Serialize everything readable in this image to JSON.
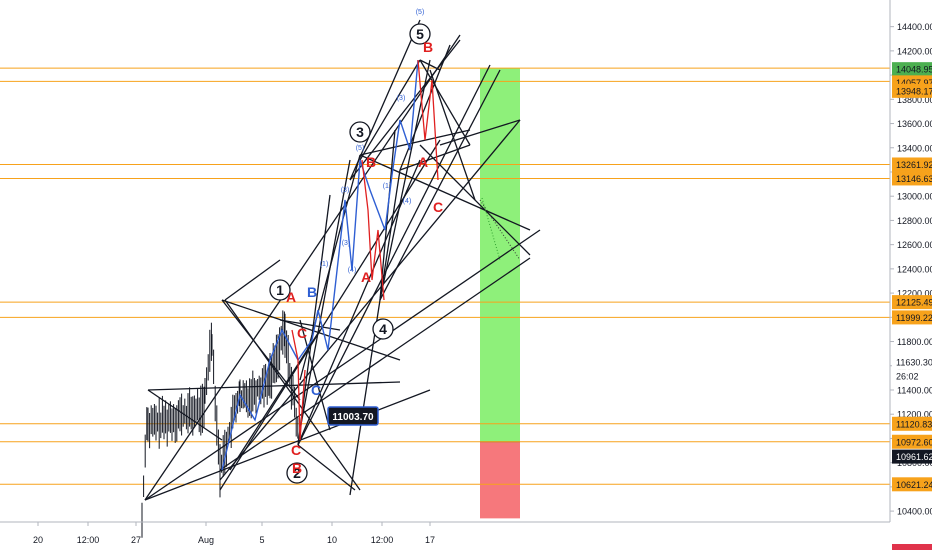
{
  "chart_data": {
    "type": "line",
    "instrument_note": "",
    "x_ticks": [
      "20",
      "12:00",
      "27",
      "Aug",
      "5",
      "10",
      "12:00",
      "17"
    ],
    "y_ticks": [
      14400,
      14200,
      14000,
      13800,
      13600,
      13400,
      13200,
      13000,
      12800,
      12600,
      12400,
      12200,
      12000,
      11800,
      11600,
      11400,
      11200,
      11000,
      10800,
      10600,
      10400
    ],
    "ylim": [
      10310,
      14620
    ],
    "axis_badges": [
      {
        "label": "14048.95",
        "value": 14048.95,
        "color": "#4caf50"
      },
      {
        "label": "14057.97",
        "value": 13940,
        "color": "#f7a21b"
      },
      {
        "label": "13948.17",
        "value": 13870,
        "color": "#f7a21b"
      },
      {
        "label": "13261.92",
        "value": 13261.92,
        "color": "#f7a21b"
      },
      {
        "label": "13146.63",
        "value": 13146.63,
        "color": "#f7a21b"
      },
      {
        "label": "12125.49",
        "value": 12125.49,
        "color": "#f7a21b"
      },
      {
        "label": "11999.22",
        "value": 11999.22,
        "color": "#f7a21b"
      },
      {
        "label": "11630.30",
        "value": 11630.3,
        "color": "#ffffff"
      },
      {
        "label": "26:02",
        "value": 11515,
        "color": "#ffffff"
      },
      {
        "label": "11120.83",
        "value": 11120.83,
        "color": "#f7a21b"
      },
      {
        "label": "10972.60",
        "value": 10972.6,
        "color": "#f7a21b"
      },
      {
        "label": "10961.62",
        "value": 10850,
        "color": "#131722"
      },
      {
        "label": "10621.24",
        "value": 10621.24,
        "color": "#f7a21b"
      }
    ],
    "horizontal_levels": [
      14057.97,
      13948.17,
      13261.92,
      13146.63,
      12125.49,
      11999.22,
      11120.83,
      10972.6,
      10621.24
    ],
    "price_callout": {
      "label": "11003.70",
      "value": 11003.7
    },
    "position_box": {
      "entry": 10972.6,
      "target": 14057.97,
      "stop": 10340
    },
    "colors": {
      "level": "#f7a21b",
      "profit": "#8ef07a",
      "loss": "#f6787c",
      "wave_blue": "#2f5fd3",
      "wave_red": "#e02020",
      "line_black": "#131722",
      "grid_text": "#131722"
    },
    "wave_labels": [
      {
        "text": "1",
        "style": "circle",
        "color": "black"
      },
      {
        "text": "2",
        "style": "circle",
        "color": "black"
      },
      {
        "text": "3",
        "style": "circle",
        "color": "black"
      },
      {
        "text": "4",
        "style": "circle",
        "color": "black"
      },
      {
        "text": "5",
        "style": "circle",
        "color": "black"
      },
      {
        "text": "A",
        "style": "bold",
        "color": "red"
      },
      {
        "text": "B",
        "style": "bold",
        "color": "red"
      },
      {
        "text": "C",
        "style": "bold",
        "color": "red"
      },
      {
        "text": "A",
        "style": "bold",
        "color": "red"
      },
      {
        "text": "B",
        "style": "bold",
        "color": "red"
      },
      {
        "text": "C",
        "style": "bold",
        "color": "red"
      },
      {
        "text": "A",
        "style": "bold",
        "color": "red"
      },
      {
        "text": "B",
        "style": "bold",
        "color": "red"
      },
      {
        "text": "C",
        "style": "bold",
        "color": "red"
      },
      {
        "text": "B",
        "style": "bold",
        "color": "blue"
      },
      {
        "text": "C",
        "style": "bold",
        "color": "blue"
      },
      {
        "text": "(1)",
        "style": "small",
        "color": "blue"
      },
      {
        "text": "(3)",
        "style": "small",
        "color": "blue"
      },
      {
        "text": "(4)",
        "style": "small",
        "color": "blue"
      },
      {
        "text": "(5)",
        "style": "small",
        "color": "blue"
      },
      {
        "text": "(1)",
        "style": "small",
        "color": "blue"
      },
      {
        "text": "(3)",
        "style": "small",
        "color": "blue"
      },
      {
        "text": "(4)",
        "style": "small",
        "color": "blue"
      },
      {
        "text": "(5)",
        "style": "small",
        "color": "blue"
      },
      {
        "text": "(3)",
        "style": "small",
        "color": "blue"
      }
    ]
  }
}
